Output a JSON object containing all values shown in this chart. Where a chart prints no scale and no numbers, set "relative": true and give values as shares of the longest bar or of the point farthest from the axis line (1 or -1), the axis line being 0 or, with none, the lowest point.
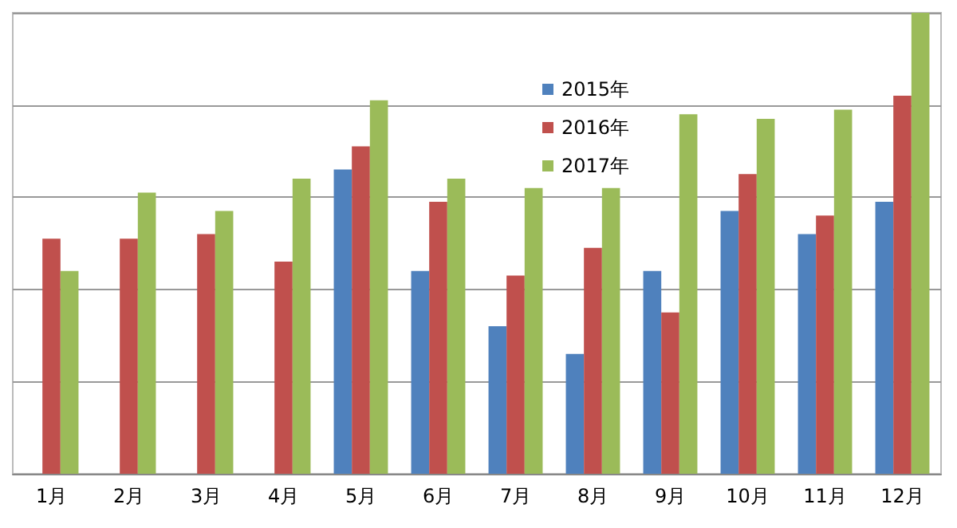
{
  "chart_data": {
    "type": "bar",
    "relative": true,
    "categories": [
      "1月",
      "2月",
      "3月",
      "4月",
      "5月",
      "6月",
      "7月",
      "8月",
      "9月",
      "10月",
      "11月",
      "12月"
    ],
    "series": [
      {
        "name": "2015年",
        "color": "#4f81bd",
        "values": [
          null,
          null,
          null,
          null,
          0.66,
          0.44,
          0.32,
          0.26,
          0.44,
          0.57,
          0.52,
          0.59
        ]
      },
      {
        "name": "2016年",
        "color": "#c0504d",
        "values": [
          0.51,
          0.51,
          0.52,
          0.46,
          0.71,
          0.59,
          0.43,
          0.49,
          0.35,
          0.65,
          0.56,
          0.82
        ]
      },
      {
        "name": "2017年",
        "color": "#9bbb59",
        "values": [
          0.44,
          0.61,
          0.57,
          0.64,
          0.81,
          0.64,
          0.62,
          0.62,
          0.78,
          0.77,
          0.79,
          1
        ]
      }
    ],
    "grid": "y",
    "legend": "top"
  }
}
